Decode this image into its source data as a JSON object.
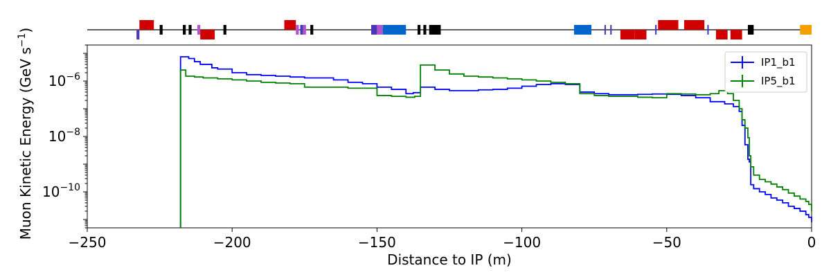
{
  "chart_data": {
    "type": "line",
    "xlabel": "Distance to IP (m)",
    "ylabel": "Muon Kinetic Energy (GeV s$^{-1}$)",
    "xlim": [
      -250,
      0
    ],
    "ylim": [
      5e-12,
      2e-05
    ],
    "yscale": "log",
    "x_ticks": [
      -250,
      -200,
      -150,
      -100,
      -50,
      0
    ],
    "y_ticks": [
      1e-10,
      1e-08,
      1e-06
    ],
    "legend": {
      "placement": "top-right"
    },
    "series": [
      {
        "name": "IP1_b1",
        "color": "#0000ff",
        "x": [
          -217.8,
          -215,
          -213,
          -211,
          -207,
          -205,
          -200,
          -195,
          -190,
          -185,
          -180,
          -175,
          -170,
          -165,
          -160,
          -155,
          -150,
          -145,
          -140,
          -137.5,
          -135,
          -130,
          -125,
          -120,
          -115,
          -110,
          -105,
          -100,
          -95,
          -90,
          -85,
          -80,
          -75,
          -70,
          -65,
          -60,
          -55,
          -50,
          -45,
          -40,
          -35,
          -30,
          -27,
          -25,
          -24,
          -23,
          -22,
          -21.5,
          -21,
          -20,
          -18,
          -16,
          -14,
          -12,
          -10,
          -8,
          -6,
          -4,
          -2,
          -1,
          0
        ],
        "y": [
          7.5e-06,
          6.5e-06,
          5e-06,
          4e-06,
          3e-06,
          2.7e-06,
          2e-06,
          1.7e-06,
          1.6e-06,
          1.5e-06,
          1.4e-06,
          1.3e-06,
          1.3e-06,
          1.1e-06,
          9e-07,
          8e-07,
          6e-07,
          5e-07,
          3.5e-07,
          3.8e-07,
          6e-07,
          5e-07,
          4.5e-07,
          4.5e-07,
          4.8e-07,
          5e-07,
          5.5e-07,
          6.5e-07,
          7.5e-07,
          8e-07,
          7.5e-07,
          4e-07,
          3.5e-07,
          3.2e-07,
          3.2e-07,
          3.3e-07,
          3.4e-07,
          3.3e-07,
          3e-07,
          2.5e-07,
          1.8e-07,
          1.5e-07,
          1.2e-07,
          8e-08,
          2.5e-08,
          5e-09,
          1.5e-09,
          1.2e-09,
          1.8e-10,
          1.3e-10,
          1e-10,
          8e-11,
          6e-11,
          5e-11,
          4e-11,
          3e-11,
          2.5e-11,
          2e-11,
          1.5e-11,
          1.2e-11,
          8e-12
        ]
      },
      {
        "name": "IP5_b1",
        "color": "#008000",
        "x": [
          -217.8,
          -216,
          -213,
          -210,
          -205,
          -200,
          -195,
          -190,
          -185,
          -180,
          -175,
          -170,
          -165,
          -160,
          -155,
          -150,
          -145,
          -140,
          -137,
          -135,
          -130,
          -125,
          -120,
          -115,
          -110,
          -105,
          -100,
          -95,
          -90,
          -85,
          -80,
          -75,
          -70,
          -65,
          -60,
          -55,
          -50,
          -45,
          -40,
          -35,
          -32,
          -29,
          -27,
          -25,
          -24,
          -23,
          -22,
          -21.5,
          -21,
          -20,
          -18,
          -16,
          -14,
          -12,
          -10,
          -8,
          -6,
          -4,
          -2,
          -1,
          0
        ],
        "y": [
          2.5e-06,
          1.5e-06,
          1.4e-06,
          1.3e-06,
          1.2e-06,
          1.1e-06,
          1e-06,
          9e-07,
          8.5e-07,
          8e-07,
          6e-07,
          6e-07,
          6e-07,
          5.5e-07,
          5.5e-07,
          3e-07,
          2.8e-07,
          2.6e-07,
          2.8e-07,
          3.8e-06,
          2.5e-06,
          1.8e-06,
          1.5e-06,
          1.4e-06,
          1.3e-06,
          1.2e-06,
          1.1e-06,
          1e-06,
          9e-07,
          8e-07,
          3.5e-07,
          3e-07,
          2.8e-07,
          2.8e-07,
          2.6e-07,
          2.5e-07,
          3.5e-07,
          3.4e-07,
          3.2e-07,
          3.5e-07,
          4.5e-07,
          3.5e-07,
          2e-07,
          1e-07,
          4e-08,
          2e-08,
          9e-09,
          2e-09,
          8e-10,
          4e-10,
          2.8e-10,
          2.3e-10,
          1.9e-10,
          1.5e-10,
          1.2e-10,
          9e-11,
          7e-11,
          5.5e-11,
          4.5e-11,
          3.5e-11,
          2e-11
        ]
      }
    ],
    "beamline_elements": [
      {
        "x0": -233,
        "x1": -232,
        "color": "#4b38b8",
        "side": "down"
      },
      {
        "x0": -232,
        "x1": -227,
        "color": "#d00000",
        "side": "up"
      },
      {
        "x0": -225,
        "x1": -224,
        "color": "#000000",
        "side": "both"
      },
      {
        "x0": -217,
        "x1": -216,
        "color": "#000000",
        "side": "both"
      },
      {
        "x0": -215,
        "x1": -214,
        "color": "#000000",
        "side": "both"
      },
      {
        "x0": -212,
        "x1": -211,
        "color": "#b055cc",
        "side": "both"
      },
      {
        "x0": -211,
        "x1": -206,
        "color": "#d00000",
        "side": "down"
      },
      {
        "x0": -203,
        "x1": -202,
        "color": "#000000",
        "side": "both"
      },
      {
        "x0": -182,
        "x1": -178,
        "color": "#d00000",
        "side": "up"
      },
      {
        "x0": -178,
        "x1": -177,
        "color": "#b055cc",
        "side": "both"
      },
      {
        "x0": -176.5,
        "x1": -175.5,
        "color": "#4b38b8",
        "side": "both"
      },
      {
        "x0": -175.5,
        "x1": -174.5,
        "color": "#b055cc",
        "side": "both"
      },
      {
        "x0": -173,
        "x1": -172,
        "color": "#000000",
        "side": "both"
      },
      {
        "x0": -152,
        "x1": -150,
        "color": "#4b38b8",
        "side": "both"
      },
      {
        "x0": -150,
        "x1": -148,
        "color": "#b055cc",
        "side": "both"
      },
      {
        "x0": -148,
        "x1": -140,
        "color": "#0066cc",
        "side": "both"
      },
      {
        "x0": -136,
        "x1": -135,
        "color": "#000000",
        "side": "both"
      },
      {
        "x0": -134,
        "x1": -133,
        "color": "#000000",
        "side": "both"
      },
      {
        "x0": -132,
        "x1": -128,
        "color": "#000000",
        "side": "both"
      },
      {
        "x0": -82,
        "x1": -76,
        "color": "#0066cc",
        "side": "both"
      },
      {
        "x0": -71.5,
        "x1": -71,
        "color": "#4b38b8",
        "side": "both"
      },
      {
        "x0": -69.5,
        "x1": -69,
        "color": "#4b38b8",
        "side": "both"
      },
      {
        "x0": -66,
        "x1": -61,
        "color": "#d00000",
        "side": "down"
      },
      {
        "x0": -61,
        "x1": -57,
        "color": "#d00000",
        "side": "down"
      },
      {
        "x0": -54,
        "x1": -53.5,
        "color": "#4b38b8",
        "side": "both"
      },
      {
        "x0": -53,
        "x1": -46,
        "color": "#d00000",
        "side": "up"
      },
      {
        "x0": -44,
        "x1": -37,
        "color": "#d00000",
        "side": "up"
      },
      {
        "x0": -36,
        "x1": -35.5,
        "color": "#4b38b8",
        "side": "both"
      },
      {
        "x0": -33,
        "x1": -29,
        "color": "#d00000",
        "side": "down"
      },
      {
        "x0": -28,
        "x1": -24,
        "color": "#d00000",
        "side": "down"
      },
      {
        "x0": -22,
        "x1": -20,
        "color": "#000000",
        "side": "both"
      },
      {
        "x0": -4,
        "x1": 0,
        "color": "#f5a000",
        "side": "both"
      }
    ]
  }
}
